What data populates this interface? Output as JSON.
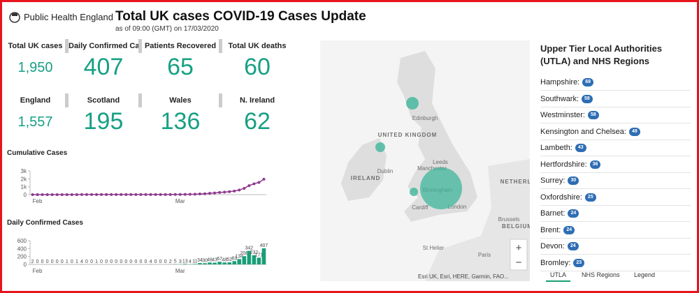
{
  "header": {
    "logo": "Public Health England",
    "title": "Total UK cases COVID-19 Cases Update",
    "subtitle": "as of 09:00 (GMT) on 17/03/2020"
  },
  "stats": [
    {
      "label": "Total UK cases",
      "value": "1,950"
    },
    {
      "label": "Daily Confirmed Cases",
      "value": "407"
    },
    {
      "label": "Patients Recovered",
      "value": "65"
    },
    {
      "label": "Total UK deaths",
      "value": "60"
    },
    {
      "label": "England",
      "value": "1,557"
    },
    {
      "label": "Scotland",
      "value": "195"
    },
    {
      "label": "Wales",
      "value": "136"
    },
    {
      "label": "N. Ireland",
      "value": "62"
    }
  ],
  "charts": [
    {
      "type": "line",
      "title": "Cumulative Cases",
      "color": "#8e3a8e",
      "categories": [
        null,
        "Feb",
        null,
        null,
        null,
        null,
        null,
        null,
        null,
        null,
        null,
        null,
        null,
        null,
        null,
        null,
        null,
        null,
        null,
        null,
        null,
        null,
        null,
        null,
        null,
        null,
        null,
        null,
        null,
        null,
        "Mar",
        null,
        null,
        null,
        null,
        null,
        null,
        null,
        null,
        null,
        null,
        null,
        null,
        null,
        null,
        null,
        null,
        null
      ],
      "values": [
        2,
        2,
        2,
        2,
        2,
        2,
        2,
        3,
        3,
        4,
        8,
        8,
        8,
        9,
        9,
        9,
        9,
        9,
        9,
        9,
        9,
        9,
        9,
        9,
        13,
        13,
        13,
        13,
        15,
        20,
        23,
        36,
        40,
        51,
        85,
        115,
        163,
        206,
        273,
        321,
        373,
        456,
        590,
        798,
        1140,
        1372,
        1543,
        1950
      ],
      "ylim": [
        0,
        3000
      ],
      "yticks": [
        0,
        {
          "value": 1000,
          "label": "1k"
        },
        {
          "value": 2000,
          "label": "2k"
        },
        {
          "value": 3000,
          "label": "3k"
        }
      ]
    },
    {
      "type": "bar",
      "title": "Daily Confirmed Cases",
      "color": "#1a9e77",
      "categories": [
        null,
        "Feb",
        null,
        null,
        null,
        null,
        null,
        null,
        null,
        null,
        null,
        null,
        null,
        null,
        null,
        null,
        null,
        null,
        null,
        null,
        null,
        null,
        null,
        null,
        null,
        null,
        null,
        null,
        null,
        null,
        "Mar",
        null,
        null,
        null,
        null,
        null,
        null,
        null,
        null,
        null,
        null,
        null,
        null,
        null,
        null,
        null,
        null,
        null
      ],
      "values": [
        2,
        0,
        0,
        0,
        0,
        0,
        0,
        1,
        0,
        1,
        4,
        0,
        0,
        1,
        0,
        0,
        0,
        0,
        0,
        0,
        0,
        0,
        0,
        0,
        4,
        0,
        0,
        0,
        2,
        5,
        3,
        13,
        4,
        11,
        34,
        30,
        48,
        43,
        67,
        48,
        52,
        83,
        134,
        208,
        342,
        232,
        171,
        407
      ],
      "ylim": [
        0,
        600
      ],
      "yticks": [
        0,
        200,
        400,
        600
      ]
    }
  ],
  "map": {
    "labels": [
      "Edinburgh",
      "UNITED KINGDOM",
      "Leeds",
      "Manchester",
      "Birmingham",
      "Dublin",
      "IRELAND",
      "Cardiff",
      "London",
      "NETHERL",
      "Brussels",
      "BELGIUM",
      "St Helier",
      "Paris"
    ],
    "attribution": "Esri UK, Esri, HERE, Garmin, FAO...",
    "zoom": [
      "+",
      "−"
    ]
  },
  "utla": {
    "title": "Upper Tier Local Authorities (UTLA) and NHS Regions",
    "items": [
      {
        "name": "Hampshire:",
        "count": "69"
      },
      {
        "name": "Southwark:",
        "count": "58"
      },
      {
        "name": "Westminster:",
        "count": "58"
      },
      {
        "name": "Kensington and Chelsea:",
        "count": "49"
      },
      {
        "name": "Lambeth:",
        "count": "43"
      },
      {
        "name": "Hertfordshire:",
        "count": "36"
      },
      {
        "name": "Surrey:",
        "count": "30"
      },
      {
        "name": "Oxfordshire:",
        "count": "25"
      },
      {
        "name": "Barnet:",
        "count": "24"
      },
      {
        "name": "Brent:",
        "count": "24"
      },
      {
        "name": "Devon:",
        "count": "24"
      },
      {
        "name": "Bromley:",
        "count": "23"
      }
    ]
  },
  "tabs": [
    "UTLA",
    "NHS Regions",
    "Legend"
  ]
}
